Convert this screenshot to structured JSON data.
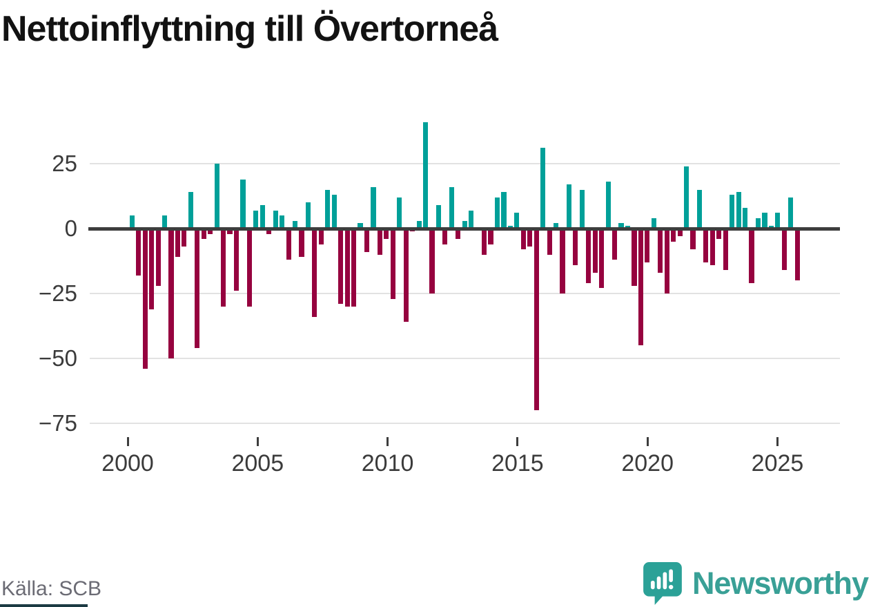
{
  "title": "Nettoinflyttning till Övertorneå",
  "footer": {
    "source": "Källa: SCB",
    "brand": "Newsworthy"
  },
  "colors": {
    "positive_bar": "#00a099",
    "negative_bar": "#96023f",
    "zero_line": "#3d3d3d",
    "gridline": "#e2e2e2",
    "brand_teal": "#39a096",
    "icon_teal": "#2ba197",
    "tick_text": "#3b3b3b",
    "source_text": "#6b6b74"
  },
  "chart_data": {
    "type": "bar",
    "title": "Nettoinflyttning till Övertorneå",
    "frequency": "quarterly",
    "start_year": 2000,
    "start_quarter": 1,
    "end_label": "2025 Q3",
    "grid": true,
    "legend": "none",
    "ylim": [
      -75,
      45
    ],
    "y_ticks": [
      25,
      0,
      -25,
      -50,
      -75
    ],
    "y_tick_labels": [
      "25",
      "0",
      "−25",
      "−50",
      "−75"
    ],
    "x_tick_years": [
      2000,
      2005,
      2010,
      2015,
      2020,
      2025
    ],
    "x_tick_labels": [
      "2000",
      "2005",
      "2010",
      "2015",
      "2020",
      "2025"
    ],
    "values": [
      5,
      -18,
      -54,
      -31,
      -22,
      5,
      -50,
      -11,
      -7,
      14,
      -46,
      -4,
      -2,
      25,
      -30,
      -2,
      -24,
      19,
      -30,
      7,
      9,
      -2,
      7,
      5,
      -12,
      3,
      -11,
      10,
      -34,
      -6,
      15,
      13,
      -29,
      -30,
      -30,
      2,
      -9,
      16,
      -10,
      -4,
      -27,
      12,
      -36,
      -1,
      3,
      41,
      -25,
      9,
      -6,
      16,
      -4,
      3,
      7,
      0,
      -10,
      -6,
      12,
      14,
      1,
      6,
      -8,
      -7,
      -70,
      31,
      -10,
      2,
      -25,
      17,
      -14,
      15,
      -21,
      -17,
      -23,
      18,
      -12,
      2,
      1,
      -22,
      -45,
      -13,
      4,
      -17,
      -25,
      -5,
      -3,
      24,
      -8,
      15,
      -13,
      -14,
      -4,
      -16,
      13,
      14,
      8,
      -21,
      4,
      6,
      1,
      6,
      -16,
      12,
      -20
    ]
  }
}
